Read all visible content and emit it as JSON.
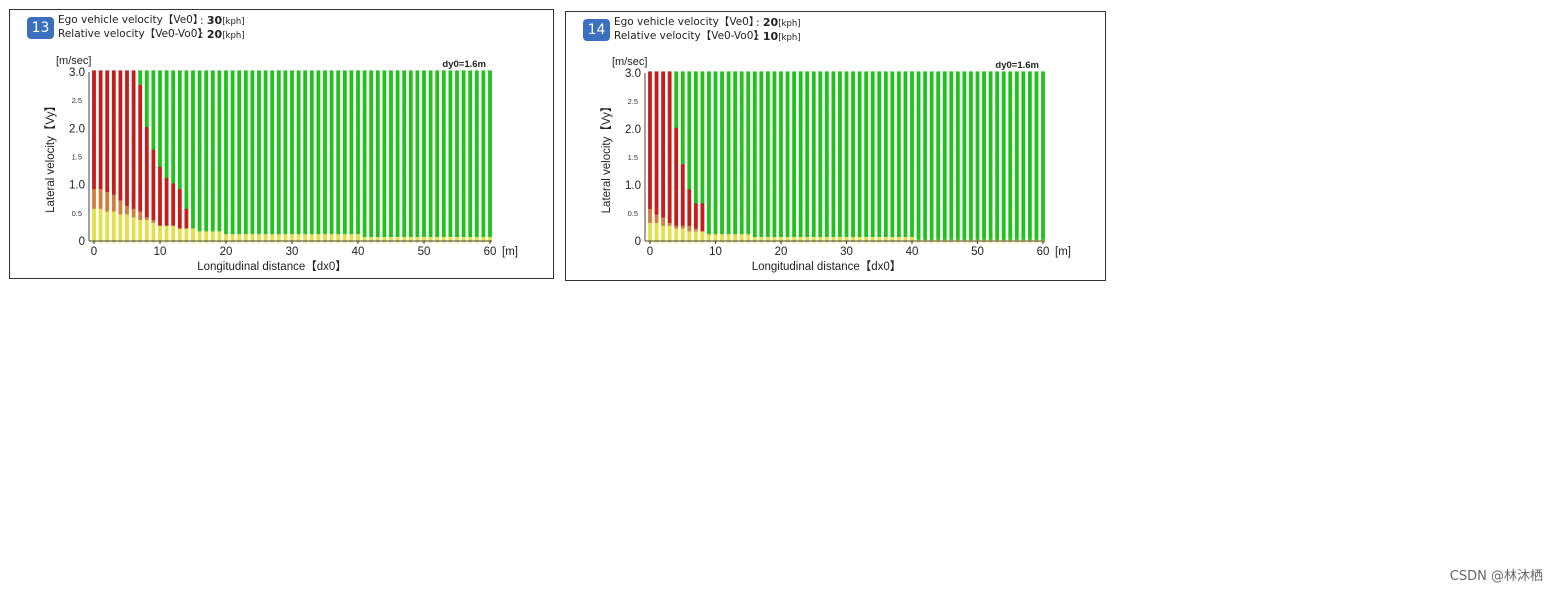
{
  "watermark": "CSDN @林沐栖",
  "chart_data": [
    {
      "type": "scatter",
      "panel_number": "13",
      "header": [
        {
          "label": "Ego vehicle velocity【Ve0】",
          "value": "30",
          "unit": "[kph]"
        },
        {
          "label": "Relative velocity【Ve0-Vo0】",
          "value": "20",
          "unit": "[kph]"
        }
      ],
      "annotation": "dy0=1.6m",
      "xlabel": "Longitudinal distance【dx0】",
      "ylabel": "Lateral velocity【Vy】",
      "x_unit": "[m]",
      "y_unit": "[m/sec]",
      "xlim": [
        0,
        60
      ],
      "ylim": [
        0,
        3.0
      ],
      "x_ticks": [
        "0",
        "10",
        "20",
        "30",
        "40",
        "50",
        "60"
      ],
      "y_ticks_major": [
        "0",
        "1.0",
        "2.0",
        "3.0"
      ],
      "y_ticks_minor": [
        "0.5",
        "1.5",
        "2.5"
      ],
      "grid_step": {
        "dx": 1,
        "dvy": 0.05
      },
      "colors": {
        "green": "#21c21d",
        "red": "#c41e1c",
        "orange": "#cf7f3c",
        "yellow": "#e4e04a"
      },
      "red_boundary": {
        "x": [
          0,
          1,
          2,
          3,
          4,
          5,
          6,
          7,
          8,
          9,
          10,
          11,
          12,
          13,
          14
        ],
        "vy": [
          0.95,
          0.92,
          0.88,
          0.8,
          0.72,
          0.62,
          0.55,
          0.5,
          0.42,
          0.36,
          0.3,
          0.26,
          0.22,
          0.16,
          0.1
        ],
        "upper": [
          3.0,
          3.0,
          3.0,
          3.0,
          3.0,
          3.0,
          3.0,
          2.75,
          2.0,
          1.6,
          1.3,
          1.1,
          1.0,
          0.9,
          0.6
        ]
      },
      "yellow_boundary": {
        "x": [
          0,
          5,
          10,
          15,
          20,
          30,
          40,
          50,
          60
        ],
        "vy": [
          0.6,
          0.45,
          0.3,
          0.2,
          0.15,
          0.12,
          0.1,
          0.08,
          0.06
        ]
      }
    },
    {
      "type": "scatter",
      "panel_number": "14",
      "header": [
        {
          "label": "Ego vehicle velocity【Ve0】",
          "value": "20",
          "unit": "[kph]"
        },
        {
          "label": "Relative velocity【Ve0-Vo0】",
          "value": "10",
          "unit": "[kph]"
        }
      ],
      "annotation": "dy0=1.6m",
      "xlabel": "Longitudinal distance【dx0】",
      "ylabel": "Lateral velocity【Vy】",
      "x_unit": "[m]",
      "y_unit": "[m/sec]",
      "xlim": [
        0,
        60
      ],
      "ylim": [
        0,
        3.0
      ],
      "x_ticks": [
        "0",
        "10",
        "20",
        "30",
        "40",
        "50",
        "60"
      ],
      "y_ticks_major": [
        "0",
        "1.0",
        "2.0",
        "3.0"
      ],
      "y_ticks_minor": [
        "0.5",
        "1.5",
        "2.5"
      ],
      "grid_step": {
        "dx": 1,
        "dvy": 0.05
      },
      "colors": {
        "green": "#21c21d",
        "red": "#c41e1c",
        "orange": "#cf7f3c",
        "yellow": "#e4e04a"
      },
      "red_boundary": {
        "x": [
          0,
          1,
          2,
          3,
          4,
          5,
          6,
          7,
          8
        ],
        "vy": [
          0.55,
          0.48,
          0.42,
          0.35,
          0.3,
          0.28,
          0.25,
          0.2,
          0.15
        ],
        "upper": [
          3.0,
          3.0,
          3.0,
          3.0,
          2.0,
          1.4,
          0.9,
          0.7,
          0.65
        ]
      },
      "yellow_boundary": {
        "x": [
          0,
          5,
          10,
          20,
          30,
          40,
          50,
          60
        ],
        "vy": [
          0.35,
          0.2,
          0.12,
          0.08,
          0.06,
          0.05,
          0.04,
          0.03
        ]
      }
    }
  ]
}
